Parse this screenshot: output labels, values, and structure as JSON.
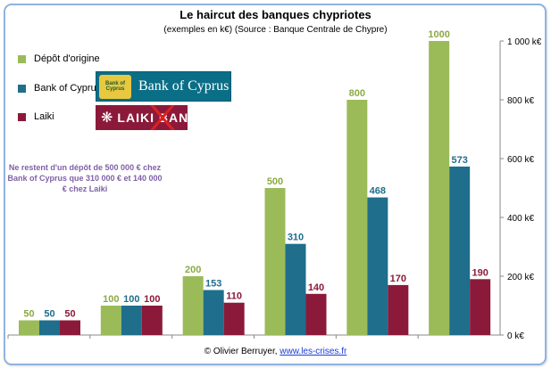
{
  "title": "Le haircut des banques chypriotes",
  "subtitle": "(exemples en k€) (Source : Banque Centrale de Chypre)",
  "legend": [
    {
      "name": "Dépôt d'origine",
      "color": "#9bbb59"
    },
    {
      "name": "Bank of Cyprus",
      "color": "#1f6e8c"
    },
    {
      "name": "Laiki",
      "color": "#8b1a3a"
    }
  ],
  "logos": {
    "boc_text": "Bank of Cyprus",
    "boc_emblem": "Bank of Cyprus",
    "laiki_text": "LAIKI BANK"
  },
  "note": "Ne restent d'un dépôt de 500 000 € chez Bank of Cyprus que 310 000 € et 140 000 € chez Laiki",
  "credit": {
    "prefix": "© Olivier Berruyer, ",
    "link": "www.les-crises.fr"
  },
  "chart_data": {
    "type": "bar",
    "categories": [
      "",
      "",
      "",
      "",
      "",
      ""
    ],
    "series": [
      {
        "name": "Dépôt d'origine",
        "values": [
          50,
          100,
          200,
          500,
          800,
          1000
        ],
        "color": "#9bbb59",
        "label_color": "#8aab42"
      },
      {
        "name": "Bank of Cyprus",
        "values": [
          50,
          100,
          153,
          310,
          468,
          573
        ],
        "color": "#1f6e8c",
        "label_color": "#1f6e8c"
      },
      {
        "name": "Laiki",
        "values": [
          50,
          100,
          110,
          140,
          170,
          190
        ],
        "color": "#8b1a3a",
        "label_color": "#8b1a3a"
      }
    ],
    "ylim": [
      0,
      1000
    ],
    "yticks": [
      "0 k€",
      "200 k€",
      "400 k€",
      "600 k€",
      "800 k€",
      "1 000 k€"
    ],
    "ytick_values": [
      0,
      200,
      400,
      600,
      800,
      1000
    ],
    "y_axis_position": "right",
    "grid": false,
    "legend_position": "left"
  }
}
